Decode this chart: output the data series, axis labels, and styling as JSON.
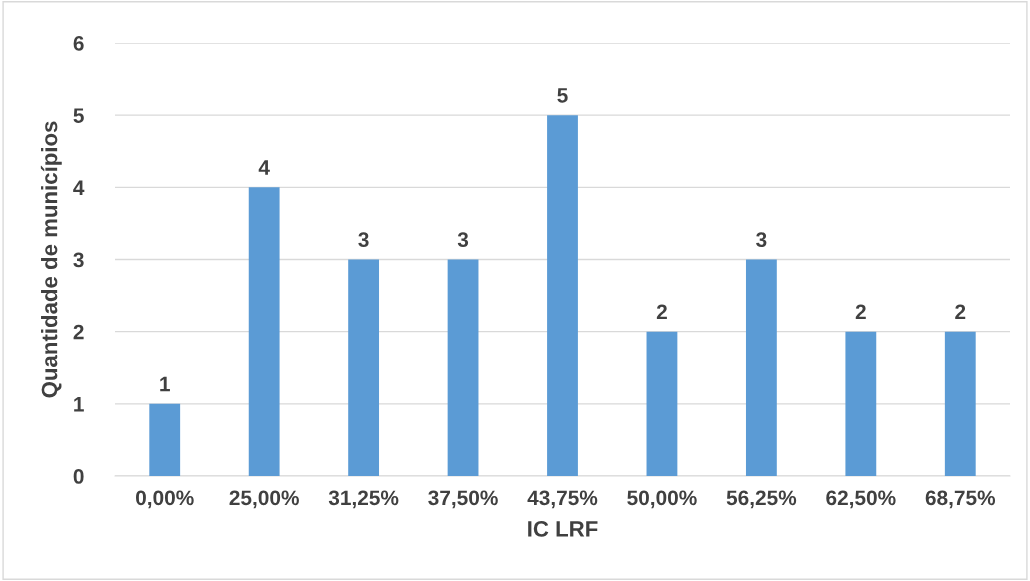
{
  "chart_data": {
    "type": "bar",
    "xlabel": "IC LRF",
    "ylabel": "Quantidade de municípios",
    "categories": [
      "0,00%",
      "25,00%",
      "31,25%",
      "37,50%",
      "43,75%",
      "50,00%",
      "56,25%",
      "62,50%",
      "68,75%"
    ],
    "values": [
      1,
      4,
      3,
      3,
      5,
      2,
      3,
      2,
      2
    ],
    "color": "#5b9bd5",
    "ylim": [
      0,
      6
    ],
    "yticks": [
      0,
      1,
      2,
      3,
      4,
      5,
      6
    ],
    "grid": "y",
    "data_labels": true
  }
}
